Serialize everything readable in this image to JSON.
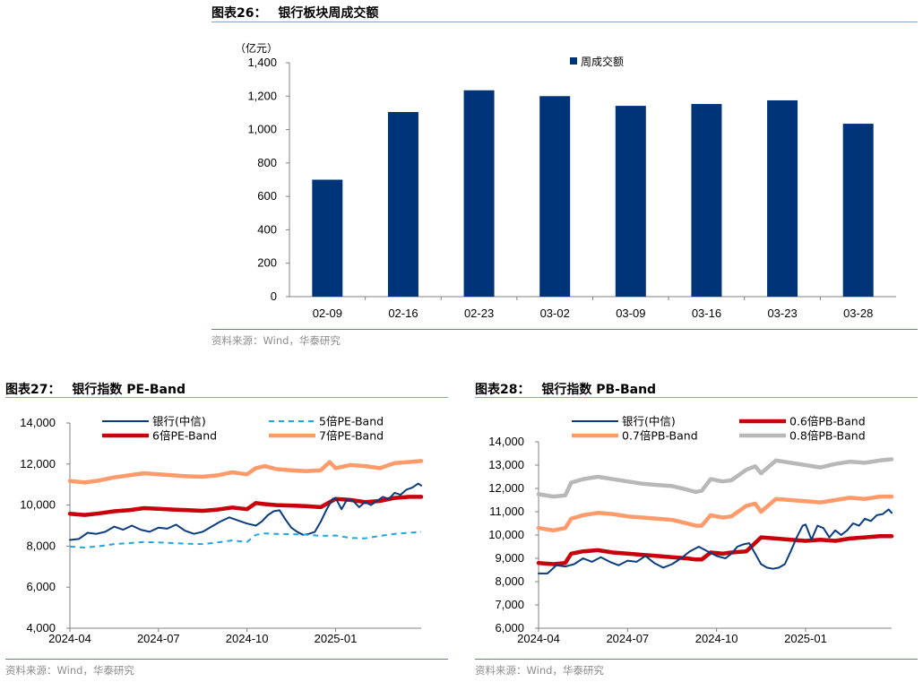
{
  "chart_data": [
    {
      "id": "fig26",
      "type": "bar",
      "figure_label": "图表26：",
      "title": "银行板块周成交额",
      "unit_label": "（亿元）",
      "categories": [
        "02-09",
        "02-16",
        "02-23",
        "03-02",
        "03-09",
        "03-16",
        "03-23",
        "03-28"
      ],
      "series": [
        {
          "name": "周成交额",
          "color": "#003478",
          "values": [
            700,
            1105,
            1235,
            1200,
            1142,
            1153,
            1175,
            1035
          ]
        }
      ],
      "ylim": [
        0,
        1400
      ],
      "yticks": [
        0,
        200,
        400,
        600,
        800,
        1000,
        1200,
        1400
      ],
      "ytick_labels": [
        "0",
        "200",
        "400",
        "600",
        "800",
        "1,000",
        "1,200",
        "1,400"
      ],
      "legend_position": "top-right",
      "grid": false,
      "source": "资料来源：Wind，华泰研究"
    },
    {
      "id": "fig27",
      "type": "line",
      "figure_label": "图表27：",
      "title": "银行指数 PE-Band",
      "x_unit": "months since 2024-04",
      "xlim": [
        0,
        11.9
      ],
      "xticks": [
        0,
        3,
        6,
        9
      ],
      "xtick_labels": [
        "2024-04",
        "2024-07",
        "2024-10",
        "2025-01"
      ],
      "ylim": [
        4000,
        14000
      ],
      "yticks": [
        4000,
        6000,
        8000,
        10000,
        12000,
        14000
      ],
      "ytick_labels": [
        "4,000",
        "6,000",
        "8,000",
        "10,000",
        "12,000",
        "14,000"
      ],
      "legend_position": "top",
      "grid": false,
      "series": [
        {
          "name": "银行(中信)",
          "color": "#0b3d7e",
          "style": "solid",
          "width": 2,
          "x": [
            0,
            0.3,
            0.6,
            0.9,
            1.2,
            1.5,
            1.8,
            2.1,
            2.4,
            2.7,
            3.0,
            3.3,
            3.6,
            3.9,
            4.2,
            4.5,
            4.8,
            5.1,
            5.4,
            5.7,
            6.0,
            6.3,
            6.5,
            6.7,
            6.9,
            7.1,
            7.3,
            7.5,
            7.7,
            7.9,
            8.1,
            8.3,
            8.5,
            8.7,
            8.9,
            9.0,
            9.2,
            9.4,
            9.6,
            9.8,
            10.0,
            10.2,
            10.4,
            10.6,
            10.8,
            11.0,
            11.2,
            11.4,
            11.6,
            11.8,
            11.9
          ],
          "y": [
            8300,
            8350,
            8650,
            8600,
            8700,
            8950,
            8800,
            9000,
            8800,
            8700,
            8900,
            8850,
            9050,
            8750,
            8600,
            8700,
            8950,
            9200,
            9400,
            9250,
            9100,
            9000,
            9200,
            9500,
            9700,
            9750,
            9300,
            8900,
            8700,
            8550,
            8600,
            8700,
            9200,
            9800,
            10300,
            10350,
            9800,
            10300,
            10200,
            9900,
            10150,
            10000,
            10200,
            10400,
            10300,
            10600,
            10500,
            10750,
            10850,
            11050,
            10950
          ]
        },
        {
          "name": "5倍PE-Band",
          "color": "#1fa8e0",
          "style": "dashed",
          "width": 2,
          "x": [
            0,
            0.5,
            1,
            1.5,
            2,
            2.5,
            3,
            3.5,
            4,
            4.5,
            5,
            5.5,
            6,
            6.3,
            6.6,
            7,
            7.5,
            8,
            8.5,
            9,
            9.5,
            10,
            10.5,
            11,
            11.5,
            11.9
          ],
          "y": [
            7980,
            7930,
            8000,
            8100,
            8150,
            8200,
            8180,
            8150,
            8120,
            8100,
            8180,
            8280,
            8200,
            8550,
            8620,
            8600,
            8580,
            8560,
            8500,
            8520,
            8400,
            8380,
            8500,
            8600,
            8650,
            8700
          ]
        },
        {
          "name": "6倍PE-Band",
          "color": "#c9000b",
          "style": "solid",
          "width": 4.5,
          "x": [
            0,
            0.5,
            1,
            1.5,
            2,
            2.5,
            3,
            3.5,
            4,
            4.5,
            5,
            5.5,
            6,
            6.3,
            6.6,
            7,
            7.5,
            8,
            8.5,
            9,
            9.5,
            10,
            10.5,
            11,
            11.5,
            11.9
          ],
          "y": [
            9580,
            9520,
            9600,
            9700,
            9750,
            9850,
            9820,
            9780,
            9750,
            9720,
            9780,
            9880,
            9800,
            10100,
            10050,
            10000,
            9980,
            9950,
            9900,
            10300,
            10250,
            10150,
            10200,
            10350,
            10400,
            10400
          ]
        },
        {
          "name": "7倍PE-Band",
          "color": "#ff9a6a",
          "style": "solid",
          "width": 4.5,
          "x": [
            0,
            0.5,
            1,
            1.5,
            2,
            2.5,
            3,
            3.5,
            4,
            4.5,
            5,
            5.5,
            6,
            6.3,
            6.6,
            7,
            7.5,
            8,
            8.5,
            8.8,
            9,
            9.5,
            10,
            10.5,
            11,
            11.5,
            11.9
          ],
          "y": [
            11180,
            11100,
            11200,
            11350,
            11450,
            11550,
            11500,
            11450,
            11400,
            11380,
            11450,
            11600,
            11500,
            11800,
            11900,
            11750,
            11700,
            11650,
            11700,
            12100,
            11800,
            11950,
            11900,
            11800,
            12050,
            12100,
            12150
          ]
        }
      ],
      "source": "资料来源：Wind，华泰研究"
    },
    {
      "id": "fig28",
      "type": "line",
      "figure_label": "图表28：",
      "title": "银行指数 PB-Band",
      "x_unit": "months since 2024-04",
      "xlim": [
        0,
        11.9
      ],
      "xticks": [
        0,
        3,
        6,
        9
      ],
      "xtick_labels": [
        "2024-04",
        "2024-07",
        "2024-10",
        "2025-01"
      ],
      "ylim": [
        6000,
        14000
      ],
      "yticks": [
        6000,
        7000,
        8000,
        9000,
        10000,
        11000,
        12000,
        13000,
        14000
      ],
      "ytick_labels": [
        "6,000",
        "7,000",
        "8,000",
        "9,000",
        "10,000",
        "11,000",
        "12,000",
        "13,000",
        "14,000"
      ],
      "legend_position": "top",
      "grid": false,
      "series": [
        {
          "name": "银行(中信)",
          "color": "#0b3d7e",
          "style": "solid",
          "width": 2,
          "x": [
            0,
            0.3,
            0.6,
            0.9,
            1.2,
            1.5,
            1.8,
            2.1,
            2.4,
            2.7,
            3.0,
            3.3,
            3.6,
            3.9,
            4.2,
            4.5,
            4.8,
            5.1,
            5.4,
            5.7,
            6.0,
            6.3,
            6.5,
            6.7,
            6.9,
            7.1,
            7.3,
            7.5,
            7.7,
            7.9,
            8.1,
            8.3,
            8.5,
            8.7,
            8.9,
            9.0,
            9.2,
            9.4,
            9.6,
            9.8,
            10.0,
            10.2,
            10.4,
            10.6,
            10.8,
            11.0,
            11.2,
            11.4,
            11.6,
            11.8,
            11.9
          ],
          "y": [
            8350,
            8350,
            8700,
            8650,
            8750,
            9000,
            8850,
            9050,
            8850,
            8700,
            8900,
            8850,
            9100,
            8800,
            8600,
            8750,
            9000,
            9300,
            9500,
            9300,
            9100,
            9000,
            9200,
            9500,
            9600,
            9650,
            9200,
            8750,
            8600,
            8550,
            8600,
            8750,
            9300,
            9900,
            10400,
            10450,
            9800,
            10400,
            10300,
            9900,
            10200,
            10000,
            10200,
            10500,
            10400,
            10700,
            10600,
            10850,
            10900,
            11100,
            10950
          ]
        },
        {
          "name": "0.6倍PB-Band",
          "color": "#c9000b",
          "style": "solid",
          "width": 4.5,
          "x": [
            0,
            0.5,
            0.9,
            1.1,
            1.5,
            2,
            2.5,
            3,
            3.5,
            4,
            4.5,
            5,
            5.3,
            5.5,
            5.8,
            6.2,
            6.5,
            7,
            7.5,
            8,
            8.5,
            9,
            9.5,
            10,
            10.5,
            11,
            11.5,
            11.9
          ],
          "y": [
            8800,
            8750,
            8800,
            9200,
            9300,
            9350,
            9250,
            9200,
            9150,
            9100,
            9050,
            9000,
            8950,
            8950,
            9250,
            9200,
            9250,
            9300,
            9900,
            9850,
            9800,
            9750,
            9800,
            9750,
            9850,
            9900,
            9950,
            9950
          ]
        },
        {
          "name": "0.7倍PB-Band",
          "color": "#ff9a6a",
          "style": "solid",
          "width": 4.5,
          "x": [
            0,
            0.5,
            0.9,
            1.1,
            1.5,
            2,
            2.5,
            3,
            3.5,
            4,
            4.5,
            5,
            5.3,
            5.5,
            5.8,
            6.2,
            6.5,
            7,
            7.3,
            7.5,
            8,
            8.5,
            9,
            9.5,
            10,
            10.5,
            11,
            11.5,
            11.9
          ],
          "y": [
            10300,
            10200,
            10300,
            10700,
            10850,
            10950,
            10900,
            10800,
            10750,
            10700,
            10650,
            10500,
            10400,
            10400,
            10850,
            10750,
            10800,
            11250,
            11350,
            11000,
            11550,
            11500,
            11450,
            11400,
            11500,
            11600,
            11550,
            11650,
            11650
          ]
        },
        {
          "name": "0.8倍PB-Band",
          "color": "#b8b8b8",
          "style": "solid",
          "width": 4.5,
          "x": [
            0,
            0.5,
            0.9,
            1.1,
            1.5,
            2,
            2.5,
            3,
            3.5,
            4,
            4.5,
            5,
            5.3,
            5.5,
            5.8,
            6.2,
            6.5,
            7,
            7.3,
            7.5,
            8,
            8.5,
            9,
            9.5,
            10,
            10.5,
            11,
            11.5,
            11.9
          ],
          "y": [
            11750,
            11650,
            11700,
            12250,
            12400,
            12500,
            12400,
            12300,
            12200,
            12150,
            12100,
            11950,
            11850,
            11900,
            12400,
            12300,
            12350,
            12800,
            12950,
            12650,
            13200,
            13100,
            13000,
            12900,
            13050,
            13150,
            13100,
            13200,
            13250
          ]
        }
      ],
      "source": "资料来源：Wind，华泰研究"
    }
  ]
}
